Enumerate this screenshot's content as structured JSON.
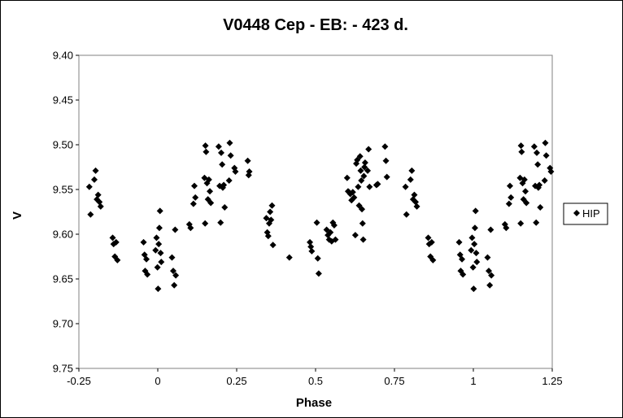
{
  "chart_data": {
    "type": "scatter",
    "title": "V0448 Cep - EB: - 423 d.",
    "xlabel": "Phase",
    "ylabel": "V",
    "xlim": [
      -0.25,
      1.25
    ],
    "ylim": [
      9.4,
      9.75
    ],
    "y_reversed": true,
    "x_ticks": [
      "-0.25",
      "0",
      "0.25",
      "0.5",
      "0.75",
      "1",
      "1.25"
    ],
    "y_ticks": [
      "9.40",
      "9.45",
      "9.50",
      "9.55",
      "9.60",
      "9.65",
      "9.70",
      "9.75"
    ],
    "grid": false,
    "legend_position": "right",
    "marker": "diamond",
    "color": "#000000",
    "series": [
      {
        "name": "HIP",
        "points": [
          [
            -0.217,
            9.547
          ],
          [
            -0.213,
            9.578
          ],
          [
            -0.201,
            9.539
          ],
          [
            -0.197,
            9.529
          ],
          [
            -0.193,
            9.561
          ],
          [
            -0.189,
            9.556
          ],
          [
            -0.185,
            9.564
          ],
          [
            -0.181,
            9.569
          ],
          [
            -0.143,
            9.604
          ],
          [
            -0.14,
            9.611
          ],
          [
            -0.136,
            9.625
          ],
          [
            -0.132,
            9.609
          ],
          [
            -0.128,
            9.629
          ],
          [
            -0.045,
            9.609
          ],
          [
            -0.042,
            9.623
          ],
          [
            -0.04,
            9.641
          ],
          [
            -0.036,
            9.628
          ],
          [
            -0.033,
            9.645
          ],
          [
            -0.007,
            9.618
          ],
          [
            -0.004,
            9.604
          ],
          [
            -0.001,
            9.637
          ],
          [
            0.001,
            9.661
          ],
          [
            0.003,
            9.611
          ],
          [
            0.005,
            9.593
          ],
          [
            0.007,
            9.574
          ],
          [
            0.009,
            9.621
          ],
          [
            0.011,
            9.631
          ],
          [
            0.045,
            9.626
          ],
          [
            0.049,
            9.641
          ],
          [
            0.052,
            9.657
          ],
          [
            0.055,
            9.595
          ],
          [
            0.057,
            9.646
          ],
          [
            0.1,
            9.589
          ],
          [
            0.104,
            9.593
          ],
          [
            0.113,
            9.566
          ],
          [
            0.116,
            9.546
          ],
          [
            0.119,
            9.559
          ],
          [
            0.148,
            9.537
          ],
          [
            0.15,
            9.588
          ],
          [
            0.151,
            9.501
          ],
          [
            0.153,
            9.508
          ],
          [
            0.156,
            9.543
          ],
          [
            0.159,
            9.561
          ],
          [
            0.162,
            9.539
          ],
          [
            0.165,
            9.552
          ],
          [
            0.168,
            9.565
          ],
          [
            0.193,
            9.502
          ],
          [
            0.196,
            9.546
          ],
          [
            0.199,
            9.587
          ],
          [
            0.201,
            9.509
          ],
          [
            0.204,
            9.522
          ],
          [
            0.206,
            9.548
          ],
          [
            0.209,
            9.545
          ],
          [
            0.212,
            9.57
          ],
          [
            0.226,
            9.54
          ],
          [
            0.228,
            9.498
          ],
          [
            0.231,
            9.512
          ],
          [
            0.243,
            9.526
          ],
          [
            0.246,
            9.53
          ],
          [
            0.285,
            9.518
          ],
          [
            0.288,
            9.534
          ],
          [
            0.29,
            9.53
          ],
          [
            0.344,
            9.582
          ],
          [
            0.347,
            9.598
          ],
          [
            0.35,
            9.602
          ],
          [
            0.353,
            9.588
          ],
          [
            0.356,
            9.575
          ],
          [
            0.359,
            9.584
          ],
          [
            0.362,
            9.568
          ],
          [
            0.365,
            9.612
          ],
          [
            0.417,
            9.626
          ],
          [
            0.482,
            9.609
          ],
          [
            0.485,
            9.614
          ],
          [
            0.488,
            9.619
          ],
          [
            0.504,
            9.587
          ],
          [
            0.507,
            9.627
          ],
          [
            0.51,
            9.644
          ],
          [
            0.535,
            9.595
          ],
          [
            0.539,
            9.601
          ],
          [
            0.543,
            9.606
          ],
          [
            0.547,
            9.598
          ],
          [
            0.551,
            9.608
          ],
          [
            0.555,
            9.587
          ],
          [
            0.559,
            9.59
          ],
          [
            0.563,
            9.606
          ],
          [
            0.6,
            9.537
          ],
          [
            0.603,
            9.552
          ],
          [
            0.606,
            9.553
          ],
          [
            0.61,
            9.555
          ],
          [
            0.614,
            9.562
          ],
          [
            0.618,
            9.553
          ],
          [
            0.622,
            9.559
          ],
          [
            0.626,
            9.601
          ],
          [
            0.629,
            9.521
          ],
          [
            0.632,
            9.517
          ],
          [
            0.635,
            9.547
          ],
          [
            0.638,
            9.568
          ],
          [
            0.641,
            9.513
          ],
          [
            0.643,
            9.529
          ],
          [
            0.645,
            9.54
          ],
          [
            0.647,
            9.572
          ],
          [
            0.649,
            9.588
          ],
          [
            0.651,
            9.606
          ],
          [
            0.653,
            9.535
          ],
          [
            0.655,
            9.525
          ],
          [
            0.657,
            9.52
          ],
          [
            0.665,
            9.529
          ],
          [
            0.668,
            9.505
          ],
          [
            0.671,
            9.547
          ],
          [
            0.693,
            9.545
          ],
          [
            0.697,
            9.544
          ],
          [
            0.72,
            9.502
          ],
          [
            0.723,
            9.518
          ],
          [
            0.726,
            9.536
          ],
          [
            0.785,
            9.547
          ],
          [
            0.788,
            9.578
          ],
          [
            0.801,
            9.539
          ],
          [
            0.805,
            9.529
          ],
          [
            0.809,
            9.561
          ],
          [
            0.813,
            9.556
          ],
          [
            0.817,
            9.564
          ],
          [
            0.821,
            9.569
          ],
          [
            0.857,
            9.604
          ],
          [
            0.86,
            9.611
          ],
          [
            0.864,
            9.625
          ],
          [
            0.868,
            9.609
          ],
          [
            0.872,
            9.629
          ],
          [
            0.955,
            9.609
          ],
          [
            0.958,
            9.623
          ],
          [
            0.96,
            9.641
          ],
          [
            0.964,
            9.628
          ],
          [
            0.967,
            9.645
          ],
          [
            0.993,
            9.618
          ],
          [
            0.996,
            9.604
          ],
          [
            0.999,
            9.637
          ],
          [
            1.001,
            9.661
          ],
          [
            1.003,
            9.611
          ],
          [
            1.005,
            9.593
          ],
          [
            1.007,
            9.574
          ],
          [
            1.009,
            9.621
          ],
          [
            1.011,
            9.631
          ],
          [
            1.045,
            9.626
          ],
          [
            1.049,
            9.641
          ],
          [
            1.052,
            9.657
          ],
          [
            1.055,
            9.595
          ],
          [
            1.057,
            9.646
          ],
          [
            1.1,
            9.589
          ],
          [
            1.104,
            9.593
          ],
          [
            1.113,
            9.566
          ],
          [
            1.116,
            9.546
          ],
          [
            1.119,
            9.559
          ],
          [
            1.148,
            9.537
          ],
          [
            1.15,
            9.588
          ],
          [
            1.151,
            9.501
          ],
          [
            1.153,
            9.508
          ],
          [
            1.156,
            9.543
          ],
          [
            1.159,
            9.561
          ],
          [
            1.162,
            9.539
          ],
          [
            1.165,
            9.552
          ],
          [
            1.168,
            9.565
          ],
          [
            1.193,
            9.502
          ],
          [
            1.196,
            9.546
          ],
          [
            1.199,
            9.587
          ],
          [
            1.201,
            9.509
          ],
          [
            1.204,
            9.522
          ],
          [
            1.206,
            9.548
          ],
          [
            1.209,
            9.545
          ],
          [
            1.212,
            9.57
          ],
          [
            1.226,
            9.54
          ],
          [
            1.228,
            9.498
          ],
          [
            1.231,
            9.512
          ],
          [
            1.243,
            9.526
          ],
          [
            1.246,
            9.53
          ]
        ]
      }
    ]
  }
}
